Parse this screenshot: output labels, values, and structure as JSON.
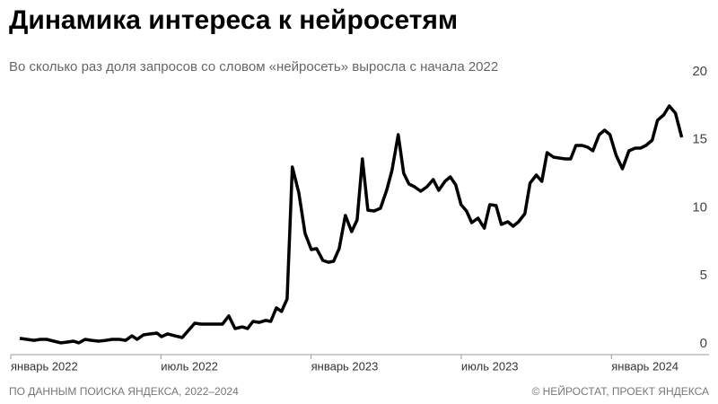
{
  "chart_data": {
    "type": "line",
    "title": "Динамика интереса к нейросетям",
    "subtitle": "Во сколько раз доля запросов со словом «нейросеть» выросла с начала 2022",
    "source": "ПО ДАННЫМ ПОИСКА ЯНДЕКСА, 2022–2024",
    "credit": "© НЕЙРОСТАТ, ПРОЕКТ ЯНДЕКСА",
    "x": [
      0.36,
      0.65,
      0.93,
      1.18,
      1.43,
      1.72,
      2.01,
      2.26,
      2.51,
      2.72,
      2.97,
      3.23,
      3.51,
      3.8,
      4.05,
      4.34,
      4.59,
      4.84,
      5.05,
      5.3,
      5.59,
      5.84,
      6.02,
      6.27,
      6.56,
      6.85,
      7.1,
      7.35,
      7.6,
      7.89,
      8.17,
      8.46,
      8.71,
      8.96,
      9.25,
      9.46,
      9.68,
      9.93,
      10.18,
      10.39,
      10.61,
      10.82,
      11.04,
      11.25,
      11.51,
      11.76,
      12.01,
      12.22,
      12.47,
      12.69,
      12.9,
      13.12,
      13.37,
      13.62,
      13.84,
      14.05,
      14.27,
      14.52,
      14.77,
      15.02,
      15.23,
      15.48,
      15.7,
      15.91,
      16.13,
      16.38,
      16.63,
      16.88,
      17.1,
      17.35,
      17.56,
      17.78,
      17.99,
      18.21,
      18.42,
      18.67,
      18.92,
      19.14,
      19.39,
      19.6,
      19.86,
      20.07,
      20.29,
      20.54,
      20.75,
      21,
      21.22,
      21.43,
      21.68,
      21.94,
      22.15,
      22.37,
      22.58,
      22.83,
      23.05,
      23.26,
      23.51,
      23.73,
      23.94,
      24.19,
      24.44,
      24.7,
      24.95,
      25.16,
      25.38,
      25.63,
      25.84,
      26.09,
      26.31,
      26.56,
      26.81
    ],
    "series": [
      {
        "color": "#000000",
        "values": [
          0.4,
          0.33,
          0.26,
          0.33,
          0.33,
          0.2,
          0.07,
          0.13,
          0.2,
          0.07,
          0.33,
          0.26,
          0.2,
          0.26,
          0.33,
          0.33,
          0.26,
          0.59,
          0.33,
          0.66,
          0.73,
          0.79,
          0.53,
          0.73,
          0.59,
          0.46,
          0.99,
          1.52,
          1.45,
          1.45,
          1.45,
          1.45,
          2.05,
          1.12,
          1.25,
          1.12,
          1.65,
          1.58,
          1.72,
          1.65,
          2.64,
          2.38,
          3.3,
          13.0,
          11.09,
          8.12,
          6.93,
          7.0,
          6.14,
          6.0,
          6.07,
          7.0,
          9.44,
          8.25,
          9.11,
          13.6,
          9.83,
          9.77,
          9.97,
          11.29,
          12.74,
          15.38,
          12.54,
          11.75,
          11.55,
          11.22,
          11.55,
          12.08,
          11.29,
          11.95,
          12.28,
          11.68,
          10.23,
          9.77,
          8.91,
          9.24,
          8.51,
          10.23,
          10.17,
          8.78,
          8.98,
          8.65,
          8.98,
          9.57,
          11.82,
          12.41,
          11.95,
          14.06,
          13.73,
          13.66,
          13.6,
          13.6,
          14.59,
          14.59,
          14.46,
          14.19,
          15.38,
          15.71,
          15.38,
          13.86,
          12.87,
          14.19,
          14.39,
          14.39,
          14.59,
          14.98,
          16.44,
          16.83,
          17.49,
          16.96,
          15.18
        ]
      }
    ],
    "xlim": [
      0,
      27.9
    ],
    "xticks": [
      {
        "value": 0,
        "label": "январь 2022"
      },
      {
        "value": 6,
        "label": "июль 2022"
      },
      {
        "value": 12,
        "label": "январь 2023"
      },
      {
        "value": 18,
        "label": "июль 2023"
      },
      {
        "value": 24,
        "label": "январь 2024"
      }
    ],
    "ylim": [
      0,
      20
    ],
    "yticks": [
      0,
      5,
      10,
      15,
      20
    ]
  }
}
